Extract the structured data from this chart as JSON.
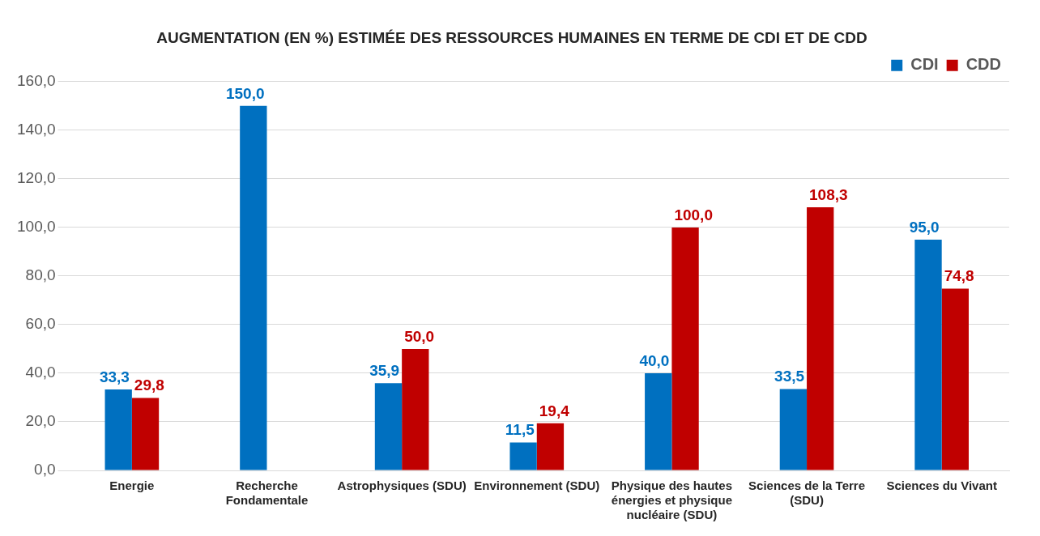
{
  "chart_data": {
    "type": "bar",
    "title": "AUGMENTATION (EN %) ESTIMÉE DES RESSOURCES HUMAINES EN TERME DE CDI ET DE CDD",
    "categories": [
      "Energie",
      "Recherche Fondamentale",
      "Astrophysiques (SDU)",
      "Environnement (SDU)",
      "Physique des hautes énergies et physique nucléaire (SDU)",
      "Sciences de la Terre (SDU)",
      "Sciences du Vivant"
    ],
    "series": [
      {
        "name": "CDI",
        "color": "#0070c0",
        "values": [
          33.3,
          150.0,
          35.9,
          11.5,
          40.0,
          33.5,
          95.0
        ],
        "value_labels": [
          "33,3",
          "150,0",
          "35,9",
          "11,5",
          "40,0",
          "33,5",
          "95,0"
        ]
      },
      {
        "name": "CDD",
        "color": "#c00000",
        "values": [
          29.8,
          null,
          50.0,
          19.4,
          100.0,
          108.3,
          74.8
        ],
        "value_labels": [
          "29,8",
          null,
          "50,0",
          "19,4",
          "100,0",
          "108,3",
          "74,8"
        ]
      }
    ],
    "ylim": [
      0,
      160
    ],
    "yticks": [
      {
        "value": 0,
        "label": "0,0"
      },
      {
        "value": 20,
        "label": "20,0"
      },
      {
        "value": 40,
        "label": "40,0"
      },
      {
        "value": 60,
        "label": "60,0"
      },
      {
        "value": 80,
        "label": "80,0"
      },
      {
        "value": 100,
        "label": "100,0"
      },
      {
        "value": 120,
        "label": "120,0"
      },
      {
        "value": 140,
        "label": "140,0"
      },
      {
        "value": 160,
        "label": "160,0"
      }
    ],
    "grid": "y",
    "legend": "top right"
  }
}
